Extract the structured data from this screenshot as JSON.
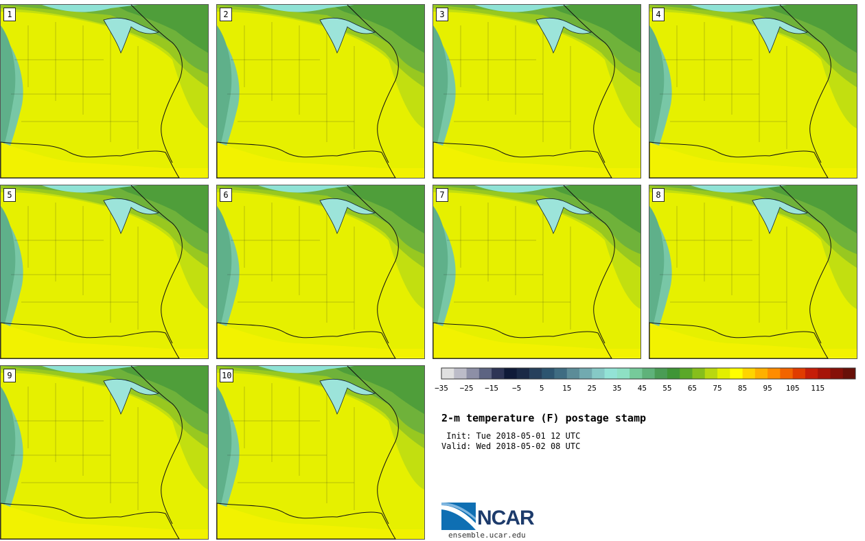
{
  "panels": [
    {
      "label": "1"
    },
    {
      "label": "2"
    },
    {
      "label": "3"
    },
    {
      "label": "4"
    },
    {
      "label": "5"
    },
    {
      "label": "6"
    },
    {
      "label": "7"
    },
    {
      "label": "8"
    },
    {
      "label": "9"
    },
    {
      "label": "10"
    }
  ],
  "colorbar": {
    "colors": [
      "#e0e0e0",
      "#bcbcc8",
      "#8d8fa6",
      "#5d6482",
      "#2e3556",
      "#0f1a38",
      "#1a2946",
      "#27405c",
      "#2d5570",
      "#3f6c82",
      "#5c8c98",
      "#72aab0",
      "#86c9c6",
      "#93e3d6",
      "#8ee0c4",
      "#76ca9a",
      "#5fb27a",
      "#4a9c55",
      "#3f9536",
      "#5aa828",
      "#86be1c",
      "#b9d810",
      "#e3ef00",
      "#ffff00",
      "#ffd400",
      "#ffb000",
      "#ff8c00",
      "#f26400",
      "#e03c00",
      "#c51e08",
      "#a61408",
      "#861008",
      "#681008"
    ],
    "tick_labels": [
      "−35",
      "−25",
      "−15",
      "−5",
      "5",
      "15",
      "25",
      "35",
      "45",
      "55",
      "65",
      "75",
      "85",
      "95",
      "105",
      "115"
    ]
  },
  "title": "2-m temperature (F) postage stamp",
  "init_line": " Init: Tue 2018-05-01 12 UTC",
  "valid_line": "Valid: Wed 2018-05-02 08 UTC",
  "logo": {
    "word": "NCAR",
    "url": "ensemble.ucar.edu"
  }
}
